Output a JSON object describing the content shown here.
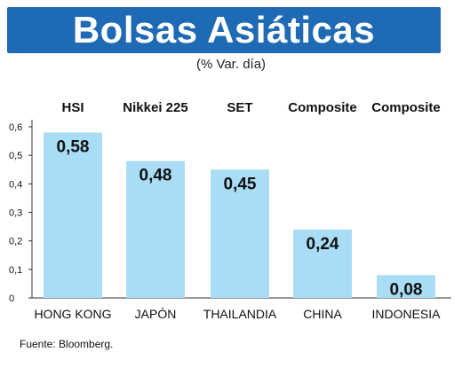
{
  "title": "Bolsas Asiáticas",
  "subtitle": "(% Var. día)",
  "source": "Fuente: Bloomberg.",
  "colors": {
    "title_bg": "#1f6ab4",
    "bar": "#a9ddf5",
    "axis": "#333333",
    "text": "#111111"
  },
  "chart_data": {
    "type": "bar",
    "categories": [
      "HONG KONG",
      "JAPÓN",
      "THAILANDIA",
      "CHINA",
      "INDONESIA"
    ],
    "index_names": [
      "HSI",
      "Nikkei 225",
      "SET",
      "Composite",
      "Composite"
    ],
    "values": [
      0.58,
      0.48,
      0.45,
      0.24,
      0.08
    ],
    "value_labels": [
      "0,58",
      "0,48",
      "0,45",
      "0,24",
      "0,08"
    ],
    "yticks": [
      0,
      0.1,
      0.2,
      0.3,
      0.4,
      0.5,
      0.6
    ],
    "ytick_labels": [
      "0",
      "0,1",
      "0,2",
      "0,3",
      "0,4",
      "0,5",
      "0,6"
    ],
    "ylim": [
      0,
      0.6
    ],
    "grid": false,
    "legend": "none"
  }
}
